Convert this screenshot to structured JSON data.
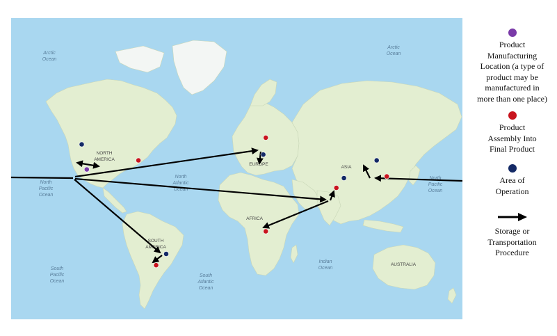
{
  "map": {
    "ocean_color": "#a9d7f0",
    "land_color": "#e3eed1",
    "ice_color": "#f3f6f4",
    "labels": {
      "arctic_ocean_left": [
        "Arctic",
        "Ocean"
      ],
      "arctic_ocean_right": [
        "Arctic",
        "Ocean"
      ],
      "north_america": [
        "NORTH",
        "AMERICA"
      ],
      "europe": "EUROPE",
      "asia": "ASIA",
      "africa": "AFRICA",
      "south_america": [
        "SOUTH",
        "AMERICA"
      ],
      "australia": "AUSTRALIA",
      "north_pacific_left": [
        "North",
        "Pacific",
        "Ocean"
      ],
      "north_pacific_right": [
        "North",
        "Pacific",
        "Ocean"
      ],
      "north_atlantic": [
        "North",
        "Atlantic",
        "Ocean"
      ],
      "south_pacific": [
        "South",
        "Pacific",
        "Ocean"
      ],
      "south_atlantic": [
        "South",
        "Atlantic",
        "Ocean"
      ],
      "indian_ocean": [
        "Indian",
        "Ocean"
      ]
    },
    "markers": {
      "manufacturing": [
        {
          "name": "Western North America",
          "lon": -118,
          "lat": 34
        }
      ],
      "assembly": [
        {
          "name": "Eastern United States",
          "lon": -77,
          "lat": 39
        },
        {
          "name": "Eastern Europe",
          "lon": 24,
          "lat": 50
        },
        {
          "name": "South Asia",
          "lon": 80,
          "lat": 23
        },
        {
          "name": "Central Africa",
          "lon": 24,
          "lat": -6
        },
        {
          "name": "South America",
          "lon": -63,
          "lat": -28
        },
        {
          "name": "East Asia",
          "lon": 120,
          "lat": 30
        }
      ],
      "operation": [
        {
          "name": "Pacific Northwest",
          "lon": -122,
          "lat": 47
        },
        {
          "name": "Black Sea region",
          "lon": 22,
          "lat": 42
        },
        {
          "name": "Tibet region",
          "lon": 86,
          "lat": 29
        },
        {
          "name": "Brazil",
          "lon": -55,
          "lat": -21
        },
        {
          "name": "North China",
          "lon": 112,
          "lat": 39
        }
      ]
    },
    "colors": {
      "manufacturing": "#7a3aa8",
      "assembly": "#c8141e",
      "operation": "#142a66",
      "arrow": "#000000"
    }
  },
  "legend": {
    "manufacturing": [
      "Product",
      "Manufacturing",
      "Location (a type of",
      "product may be",
      "manufactured in",
      "more than one place)"
    ],
    "assembly": [
      "Product",
      "Assembly Into",
      "Final Product"
    ],
    "operation": [
      "Area of",
      "Operation"
    ],
    "transport": [
      "Storage or",
      "Transportation",
      "Procedure"
    ]
  }
}
